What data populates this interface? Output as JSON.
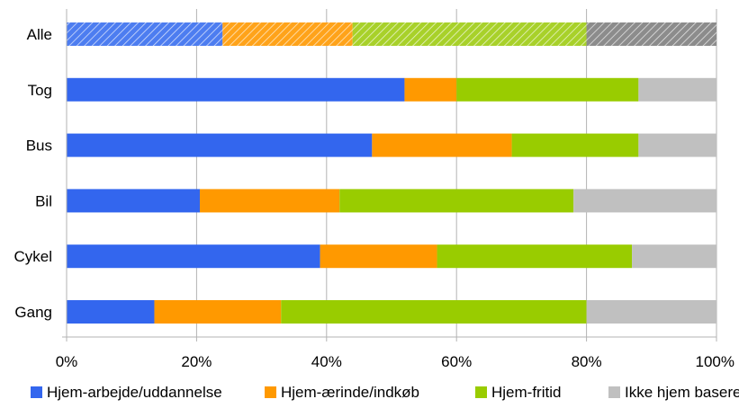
{
  "chart_data": {
    "type": "bar",
    "orientation": "horizontal",
    "stacked": true,
    "normalized": true,
    "categories": [
      "Alle",
      "Tog",
      "Bus",
      "Bil",
      "Cykel",
      "Gang"
    ],
    "series": [
      {
        "name": "Hjem-arbejde/uddannelse",
        "color": "#3366ee",
        "values": [
          24,
          52,
          47,
          20.5,
          39,
          13.5
        ]
      },
      {
        "name": "Hjem-ærinde/indkøb",
        "color": "#ff9900",
        "values": [
          20,
          8,
          21.5,
          21.5,
          18,
          19.5
        ]
      },
      {
        "name": "Hjem-fritid",
        "color": "#99cc00",
        "values": [
          36,
          28,
          19.5,
          36,
          30,
          47
        ]
      },
      {
        "name": "Ikke hjem baseret",
        "color": "#c0c0c0",
        "values": [
          20,
          12,
          12,
          22,
          13,
          20
        ]
      }
    ],
    "hatched_category": "Alle",
    "hatch_colors": [
      "#4d7df0",
      "#ffa31a",
      "#a8d12a",
      "#8c8c8c"
    ],
    "xlim": [
      0,
      100
    ],
    "xticks": [
      0,
      20,
      40,
      60,
      80,
      100
    ],
    "xtick_suffix": "%",
    "grid": true,
    "legend_position": "bottom"
  }
}
